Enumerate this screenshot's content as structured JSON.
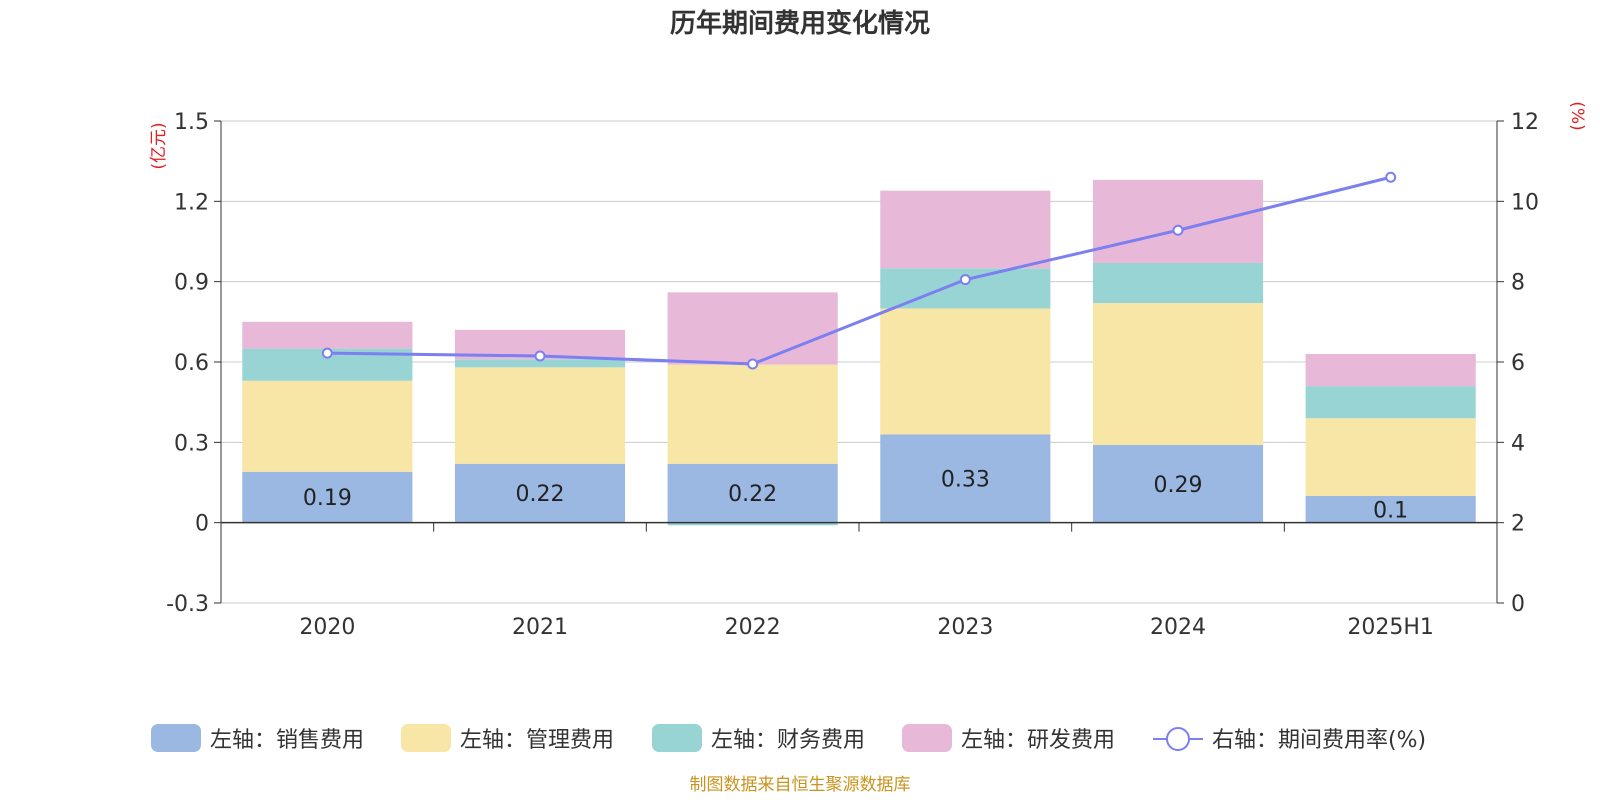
{
  "chart_data": {
    "type": "bar",
    "title": "历年期间费用变化情况",
    "categories": [
      "2020",
      "2021",
      "2022",
      "2023",
      "2024",
      "2025H1"
    ],
    "series": [
      {
        "name": "左轴：销售费用",
        "axis": "left",
        "kind": "bar",
        "color": "#9bb8e2",
        "values": [
          0.19,
          0.22,
          0.22,
          0.33,
          0.29,
          0.1
        ],
        "labels": [
          "0.19",
          "0.22",
          "0.22",
          "0.33",
          "0.29",
          "0.1"
        ]
      },
      {
        "name": "左轴：管理费用",
        "axis": "left",
        "kind": "bar",
        "color": "#f8e6a6",
        "values": [
          0.34,
          0.36,
          0.37,
          0.47,
          0.53,
          0.29
        ]
      },
      {
        "name": "左轴：财务费用",
        "axis": "left",
        "kind": "bar",
        "color": "#98d4d4",
        "values": [
          0.12,
          0.03,
          -0.01,
          0.15,
          0.15,
          0.12
        ]
      },
      {
        "name": "左轴：研发费用",
        "axis": "left",
        "kind": "bar",
        "color": "#e8b8d8",
        "values": [
          0.1,
          0.11,
          0.27,
          0.29,
          0.31,
          0.12
        ]
      },
      {
        "name": "右轴：期间费用率(%)",
        "axis": "right",
        "kind": "line",
        "color": "#7b7fef",
        "values": [
          6.22,
          6.15,
          5.95,
          8.05,
          9.28,
          10.6
        ]
      }
    ],
    "left_axis": {
      "unit": "(亿元)",
      "ylim": [
        -0.3,
        1.5
      ],
      "ticks": [
        -0.3,
        0,
        0.3,
        0.6,
        0.9,
        1.2,
        1.5
      ],
      "tick_labels": [
        "-0.3",
        "0",
        "0.3",
        "0.6",
        "0.9",
        "1.2",
        "1.5"
      ]
    },
    "right_axis": {
      "unit": "(%)",
      "ylim": [
        0,
        12
      ],
      "ticks": [
        0,
        2,
        4,
        6,
        8,
        10,
        12
      ],
      "tick_labels": [
        "0",
        "2",
        "4",
        "6",
        "8",
        "10",
        "12"
      ]
    },
    "grid": true,
    "legend_position": "bottom",
    "source": "制图数据来自恒生聚源数据库"
  }
}
